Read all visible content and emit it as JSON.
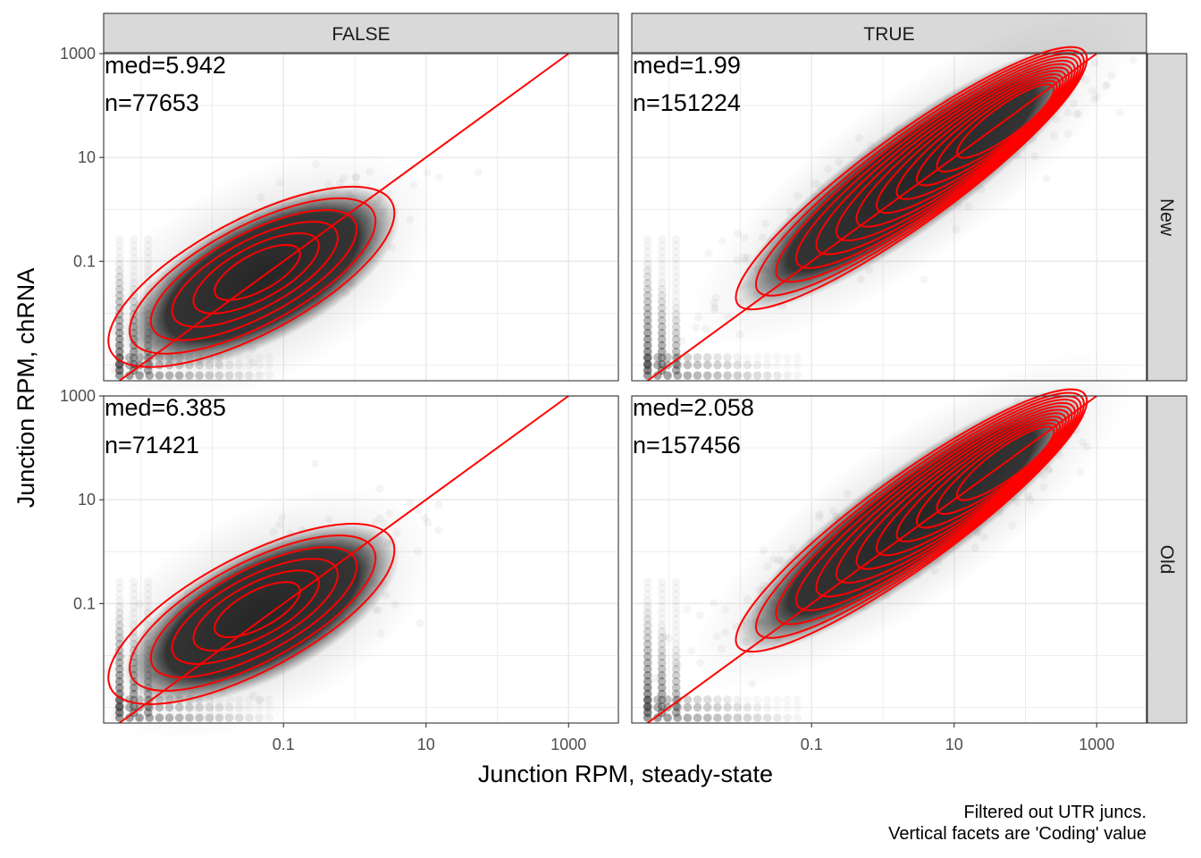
{
  "chart_data": {
    "type": "scatter",
    "facet_columns": [
      "FALSE",
      "TRUE"
    ],
    "facet_rows": [
      "New",
      "Old"
    ],
    "xlabel": "Junction RPM, steady-state",
    "ylabel": "Junction RPM, chRNA",
    "x_scale": "log10",
    "y_scale": "log10",
    "xlim": [
      0.0003,
      5000
    ],
    "ylim": [
      0.0005,
      1000
    ],
    "x_ticks": [
      0.1,
      10,
      1000
    ],
    "x_tick_labels": [
      "0.1",
      "10",
      "1000"
    ],
    "y_ticks": [
      0.1,
      10,
      1000
    ],
    "y_tick_labels": [
      "0.1",
      "10",
      "1000"
    ],
    "grid": true,
    "reference_line": {
      "type": "identity",
      "color": "#ff0000"
    },
    "points_color": "#333333",
    "contour_color": "#ff0000",
    "panels": [
      {
        "column": "FALSE",
        "row": "New",
        "median_label": "med=5.942",
        "n_label": "n=77653",
        "cloud_center": [
          -1.3,
          -1.3
        ],
        "contour_levels": 6
      },
      {
        "column": "TRUE",
        "row": "New",
        "median_label": "med=1.99",
        "n_label": "n=151224",
        "cloud_center": [
          0.4,
          0.6
        ],
        "contour_levels": 12
      },
      {
        "column": "FALSE",
        "row": "Old",
        "median_label": "med=6.385",
        "n_label": "n=71421",
        "cloud_center": [
          -1.3,
          -1.2
        ],
        "contour_levels": 6
      },
      {
        "column": "TRUE",
        "row": "Old",
        "median_label": "med=2.058",
        "n_label": "n=157456",
        "cloud_center": [
          0.4,
          0.6
        ],
        "contour_levels": 12
      }
    ],
    "caption": [
      "Filtered out UTR juncs.",
      "Vertical facets are 'Coding' value"
    ]
  }
}
